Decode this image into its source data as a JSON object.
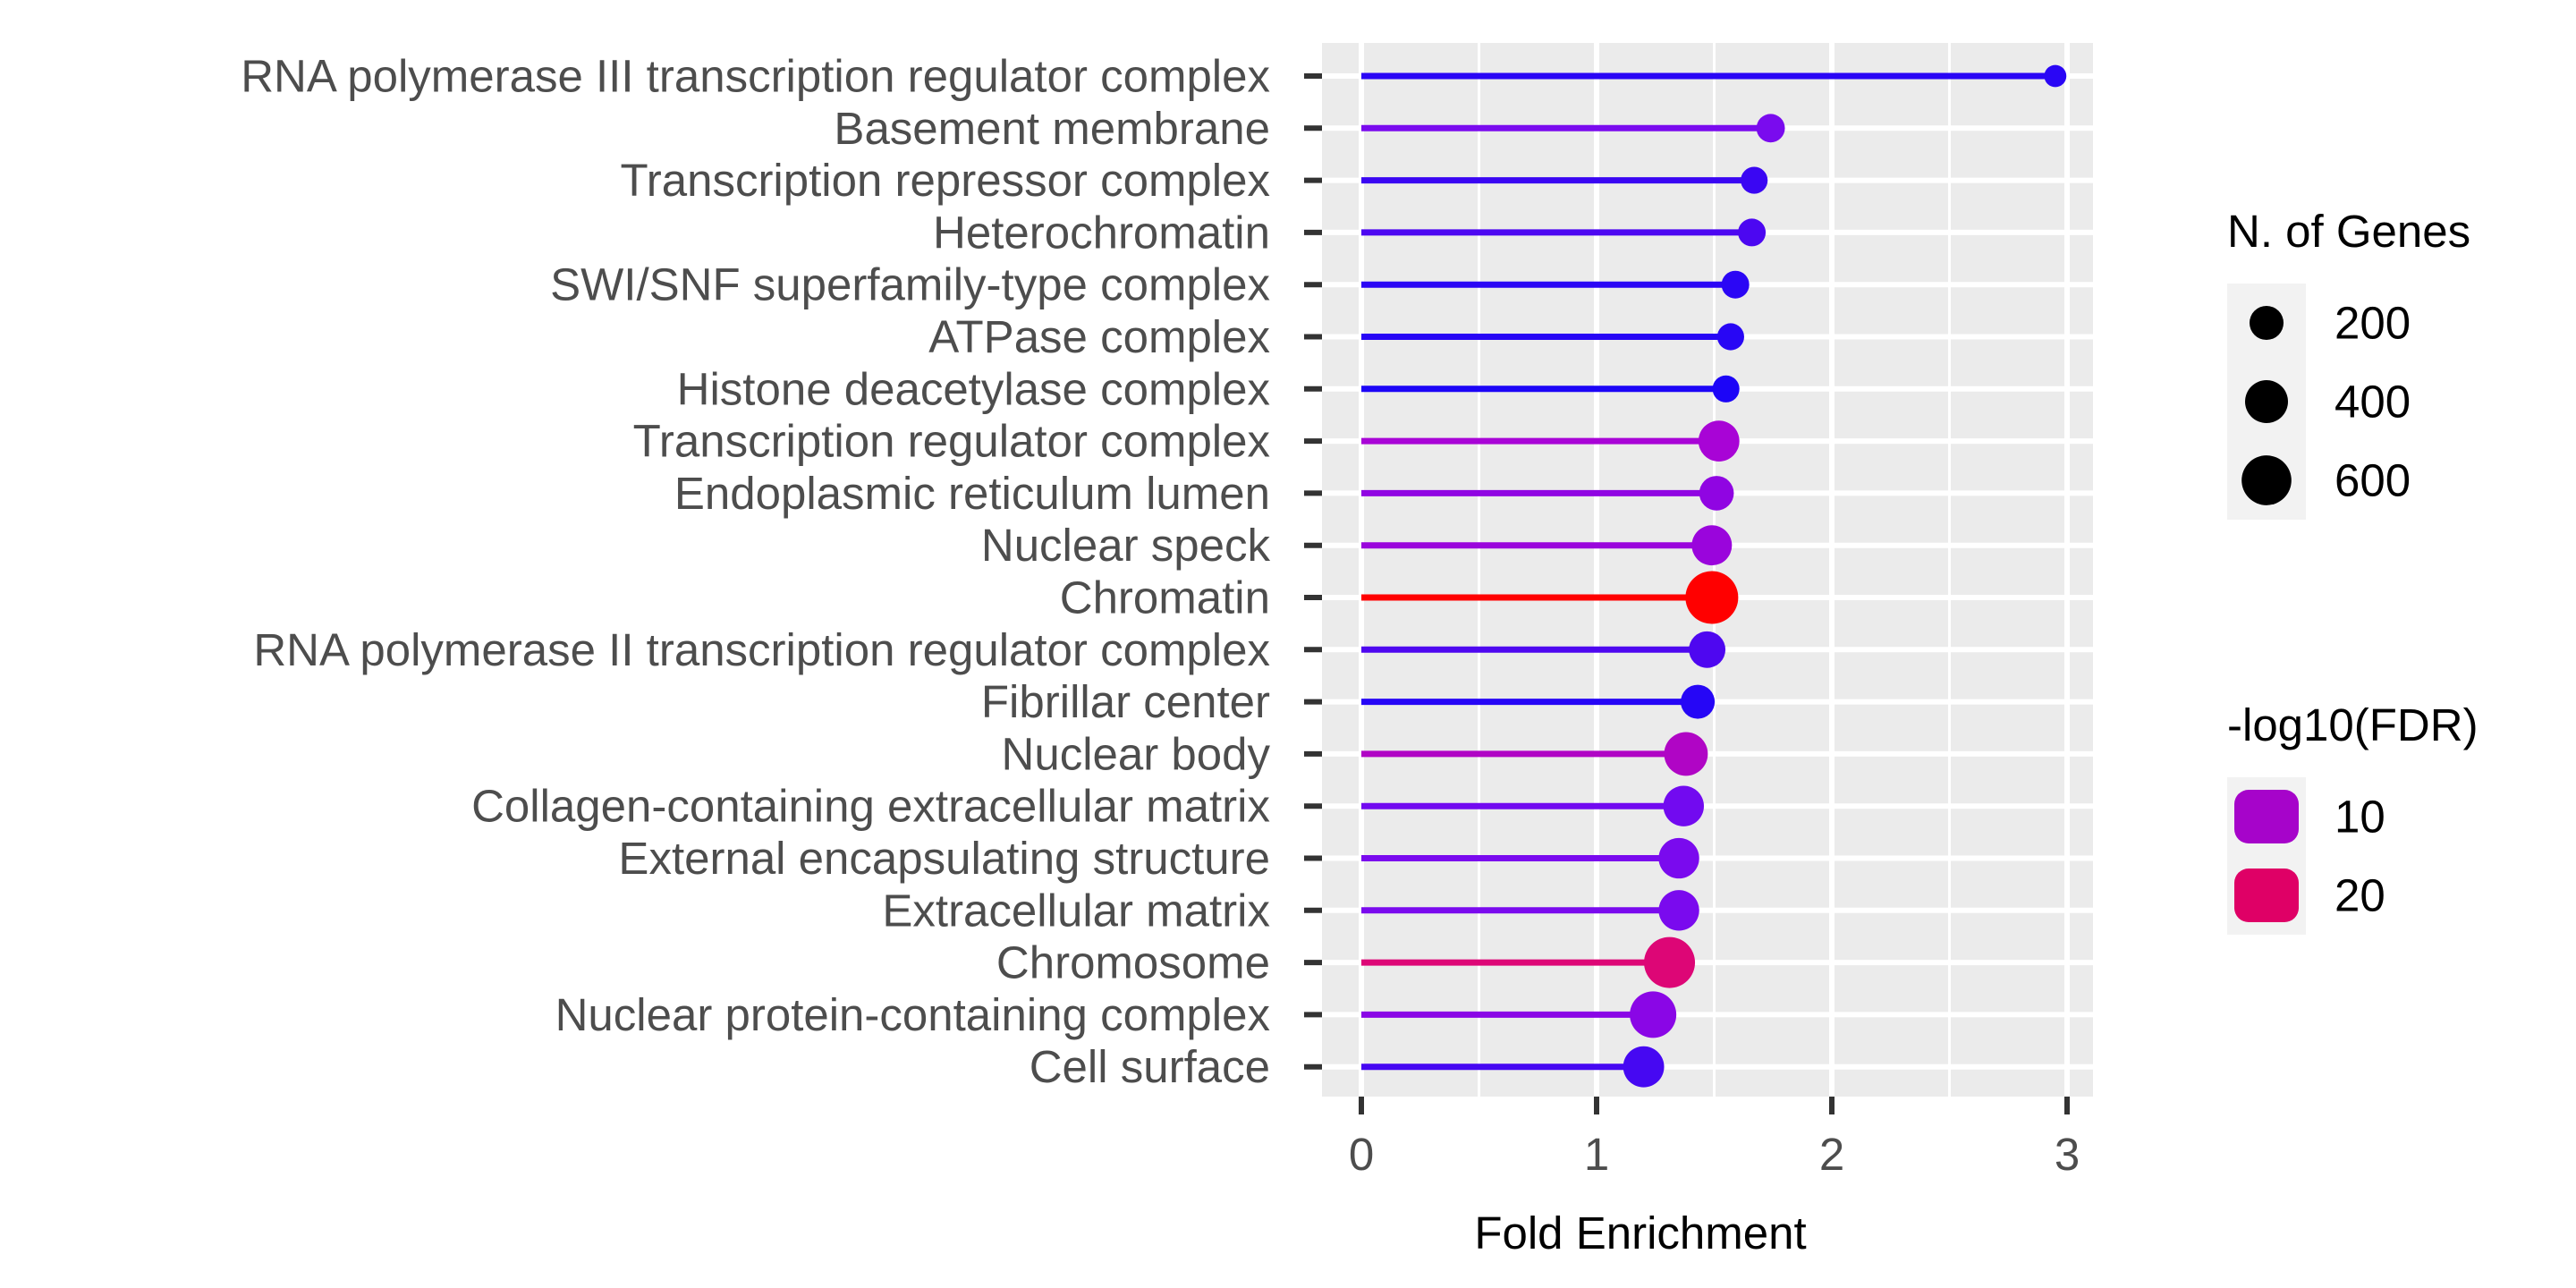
{
  "chart_data": {
    "type": "lollipop",
    "xlabel": "Fold Enrichment",
    "ylabel": "",
    "xlim": [
      -0.15,
      3.1
    ],
    "x_ticks": [
      0,
      1,
      2,
      3
    ],
    "grid": true,
    "legend_position": "right",
    "categories": [
      "RNA polymerase III transcription regulator complex",
      "Basement membrane",
      "Transcription repressor complex",
      "Heterochromatin",
      "SWI/SNF superfamily-type complex",
      "ATPase complex",
      "Histone deacetylase complex",
      "Transcription regulator complex",
      "Endoplasmic reticulum lumen",
      "Nuclear speck",
      "Chromatin",
      "RNA polymerase II transcription regulator complex",
      "Fibrillar center",
      "Nuclear body",
      "Collagen-containing extracellular matrix",
      "External encapsulating structure",
      "Extracellular matrix",
      "Chromosome",
      "Nuclear protein-containing complex",
      "Cell surface"
    ],
    "fold_enrichment": [
      2.95,
      1.74,
      1.67,
      1.66,
      1.59,
      1.57,
      1.55,
      1.52,
      1.51,
      1.49,
      1.49,
      1.47,
      1.43,
      1.38,
      1.37,
      1.35,
      1.35,
      1.31,
      1.24,
      1.2
    ],
    "n_genes": [
      40,
      110,
      90,
      100,
      100,
      90,
      90,
      350,
      210,
      330,
      700,
      250,
      200,
      420,
      340,
      340,
      340,
      640,
      500,
      350
    ],
    "neg_log10_fdr": [
      2,
      6,
      3,
      4,
      2,
      2,
      1,
      10,
      8,
      9,
      25,
      5,
      2,
      13,
      6,
      7,
      7,
      18,
      8,
      4
    ],
    "colors": [
      "#2a06f5",
      "#7a0bee",
      "#3a06f3",
      "#4c07f1",
      "#2b06f5",
      "#2806f5",
      "#1c05f7",
      "#a804d6",
      "#9005e2",
      "#9a05dc",
      "#ff0000",
      "#4e07f0",
      "#2606f6",
      "#b005c5",
      "#720af0",
      "#7a0aee",
      "#7a0aee",
      "#dd0676",
      "#8a06e6",
      "#4608f2"
    ],
    "size_legend": {
      "title": "N. of Genes",
      "entries": [
        {
          "label": "200",
          "value": 200
        },
        {
          "label": "400",
          "value": 400
        },
        {
          "label": "600",
          "value": 600
        }
      ]
    },
    "color_legend": {
      "title": "-log10(FDR)",
      "entries": [
        {
          "label": "10",
          "value": 10,
          "color": "#a604ca"
        },
        {
          "label": "20",
          "value": 20,
          "color": "#df0066"
        }
      ]
    }
  }
}
